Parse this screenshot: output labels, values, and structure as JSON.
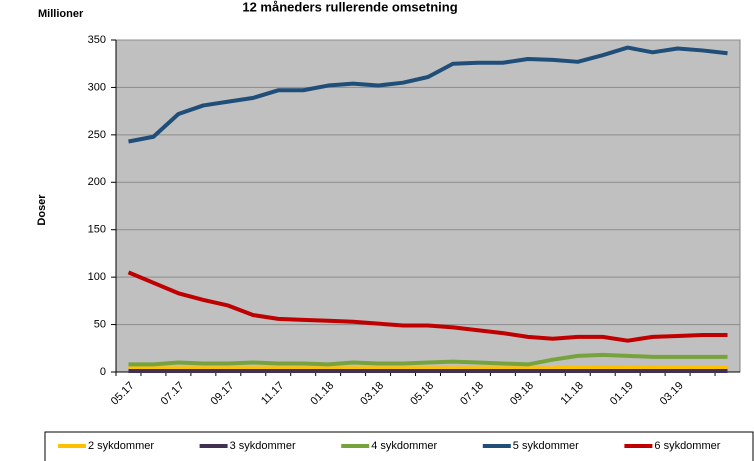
{
  "chart_data": {
    "type": "line",
    "title": "12 måneders rullerende omsetning",
    "y_unit": "Millioner",
    "y_label": "Doser",
    "categories": [
      "05.17",
      null,
      "07.17",
      null,
      "09.17",
      null,
      "11.17",
      null,
      "01.18",
      null,
      "03.18",
      null,
      "05.18",
      null,
      "07.18",
      null,
      "09.18",
      null,
      "11.18",
      null,
      "01.19",
      null,
      "03.19",
      null,
      null
    ],
    "series": [
      {
        "name": "2 sykdommer",
        "color": "#ffc000",
        "values": [
          4,
          4,
          4,
          4,
          4,
          4,
          4,
          4,
          4,
          4,
          4,
          4,
          4,
          4,
          4,
          4,
          4,
          4,
          5,
          5,
          5,
          5,
          5,
          5,
          5
        ]
      },
      {
        "name": "3 sykdommer",
        "color": "#403152",
        "values": [
          1,
          1,
          1,
          1,
          1,
          1,
          1,
          1,
          1,
          1,
          1,
          1,
          1,
          1,
          1,
          1,
          1,
          1,
          1,
          1,
          1,
          1,
          1,
          1,
          1
        ]
      },
      {
        "name": "4 sykdommer",
        "color": "#77a33c",
        "values": [
          8,
          8,
          10,
          9,
          9,
          10,
          9,
          9,
          8,
          10,
          9,
          9,
          10,
          11,
          10,
          9,
          8,
          13,
          17,
          18,
          17,
          16,
          16,
          16,
          16
        ]
      },
      {
        "name": "5 sykdommer",
        "color": "#1f4e79",
        "values": [
          243,
          248,
          272,
          281,
          285,
          289,
          297,
          297,
          302,
          304,
          302,
          305,
          311,
          325,
          326,
          326,
          330,
          329,
          327,
          334,
          342,
          337,
          341,
          339,
          336
        ]
      },
      {
        "name": "6 sykdommer",
        "color": "#c00000",
        "values": [
          105,
          94,
          83,
          76,
          70,
          60,
          56,
          55,
          54,
          53,
          51,
          49,
          49,
          47,
          44,
          41,
          37,
          35,
          37,
          37,
          33,
          37,
          38,
          39,
          39
        ]
      }
    ],
    "ylim": [
      0,
      350
    ],
    "yticks": [
      0,
      50,
      100,
      150,
      200,
      250,
      300,
      350
    ],
    "grid": true,
    "plot_background": "#c0c0c0",
    "legend": "bottom"
  }
}
